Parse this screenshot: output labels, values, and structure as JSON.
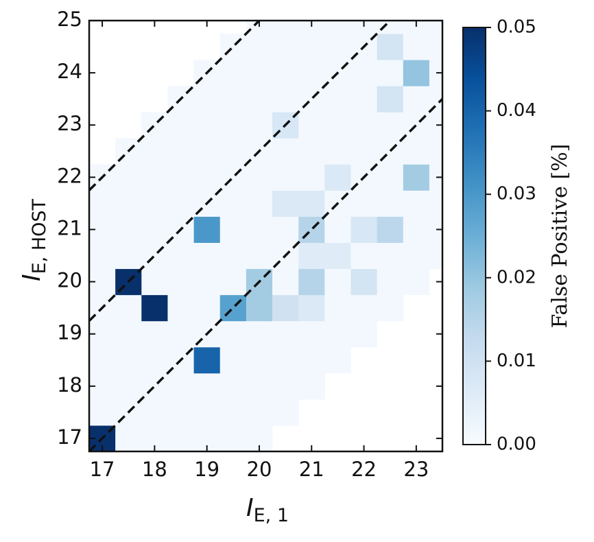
{
  "chart_data": {
    "type": "heatmap",
    "xlabel": {
      "text": "I",
      "subscript": "E, 1"
    },
    "ylabel": {
      "text": "I",
      "subscript": "E, HOST"
    },
    "colorbar_label": "False Positive [%]",
    "colormap": "Blues",
    "x": [
      17,
      17.5,
      18,
      18.5,
      19,
      19.5,
      20,
      20.5,
      21,
      21.5,
      22,
      22.5,
      23,
      23.5
    ],
    "y": [
      17,
      17.5,
      18,
      18.5,
      19,
      19.5,
      20,
      20.5,
      21,
      21.5,
      22,
      22.5,
      23,
      23.5,
      24,
      24.5,
      25
    ],
    "z": [
      [
        0.05,
        0.001,
        0.001,
        0.001,
        0.001,
        0.001,
        0.001,
        null,
        null,
        null,
        null,
        null,
        null,
        null
      ],
      [
        0.001,
        0.001,
        0.001,
        0.001,
        0.001,
        0.001,
        0.001,
        0.001,
        null,
        null,
        null,
        null,
        null,
        null
      ],
      [
        0.001,
        0.001,
        0.001,
        0.001,
        0.001,
        0.001,
        0.001,
        0.001,
        0.001,
        null,
        null,
        null,
        null,
        null
      ],
      [
        0.001,
        0.001,
        0.001,
        0.001,
        0.04,
        0.001,
        0.001,
        0.001,
        0.001,
        0.001,
        null,
        null,
        null,
        null
      ],
      [
        0.001,
        0.001,
        0.001,
        0.001,
        0.001,
        0.001,
        0.001,
        0.001,
        0.001,
        0.001,
        0.001,
        null,
        null,
        null
      ],
      [
        0.001,
        0.001,
        0.05,
        0.001,
        0.001,
        0.028,
        0.018,
        0.01,
        0.007,
        0.001,
        0.001,
        0.001,
        null,
        null
      ],
      [
        0.001,
        0.05,
        0.001,
        0.001,
        0.001,
        0.001,
        0.018,
        0.001,
        0.015,
        0.001,
        0.009,
        0.001,
        0.001,
        null
      ],
      [
        0.001,
        0.001,
        0.001,
        0.001,
        0.001,
        0.001,
        0.001,
        0.001,
        0.006,
        0.006,
        0.001,
        0.001,
        0.001,
        0.001
      ],
      [
        0.001,
        0.001,
        0.001,
        0.001,
        0.03,
        0.001,
        0.001,
        0.001,
        0.015,
        0.001,
        0.008,
        0.014,
        0.001,
        0.001
      ],
      [
        0.001,
        0.001,
        0.001,
        0.001,
        0.001,
        0.001,
        0.001,
        0.007,
        0.007,
        0.001,
        0.001,
        0.001,
        0.001,
        0.001
      ],
      [
        0.001,
        0.001,
        0.001,
        0.001,
        0.001,
        0.001,
        0.001,
        0.001,
        0.001,
        0.007,
        0.001,
        0.001,
        0.018,
        0.001
      ],
      [
        null,
        0.001,
        0.001,
        0.001,
        0.001,
        0.001,
        0.001,
        0.001,
        0.001,
        0.001,
        0.001,
        0.001,
        0.001,
        0.001
      ],
      [
        null,
        null,
        0.001,
        0.001,
        0.001,
        0.001,
        0.001,
        0.008,
        0.001,
        0.001,
        0.001,
        0.001,
        0.001,
        0.001
      ],
      [
        null,
        null,
        null,
        0.001,
        0.001,
        0.001,
        0.001,
        0.001,
        0.001,
        0.001,
        0.001,
        0.009,
        0.001,
        0.001
      ],
      [
        null,
        null,
        null,
        null,
        0.001,
        0.001,
        0.001,
        0.001,
        0.001,
        0.001,
        0.001,
        0.001,
        0.02,
        0.001
      ],
      [
        null,
        null,
        null,
        null,
        null,
        0.001,
        0.001,
        0.001,
        0.001,
        0.001,
        0.001,
        0.009,
        0.001,
        0.001
      ],
      [
        null,
        null,
        null,
        null,
        null,
        null,
        0.001,
        0.001,
        0.001,
        0.001,
        0.001,
        0.001,
        0.001,
        0.001
      ]
    ],
    "reference_lines": [
      {
        "slope": 1,
        "intercept": 5
      },
      {
        "slope": 1,
        "intercept": 2.5
      },
      {
        "slope": 1,
        "intercept": 0
      }
    ],
    "xlim": [
      16.75,
      23.5
    ],
    "ylim": [
      16.75,
      25
    ],
    "xticks": [
      17,
      18,
      19,
      20,
      21,
      22,
      23
    ],
    "yticks": [
      17,
      18,
      19,
      20,
      21,
      22,
      23,
      24,
      25
    ],
    "clim": [
      0,
      0.05
    ],
    "cticks": [
      {
        "value": 0,
        "label": "0.00"
      },
      {
        "value": 0.01,
        "label": "0.01"
      },
      {
        "value": 0.02,
        "label": "0.02"
      },
      {
        "value": 0.03,
        "label": "0.03"
      },
      {
        "value": 0.04,
        "label": "0.04"
      },
      {
        "value": 0.05,
        "label": "0.05"
      }
    ]
  }
}
